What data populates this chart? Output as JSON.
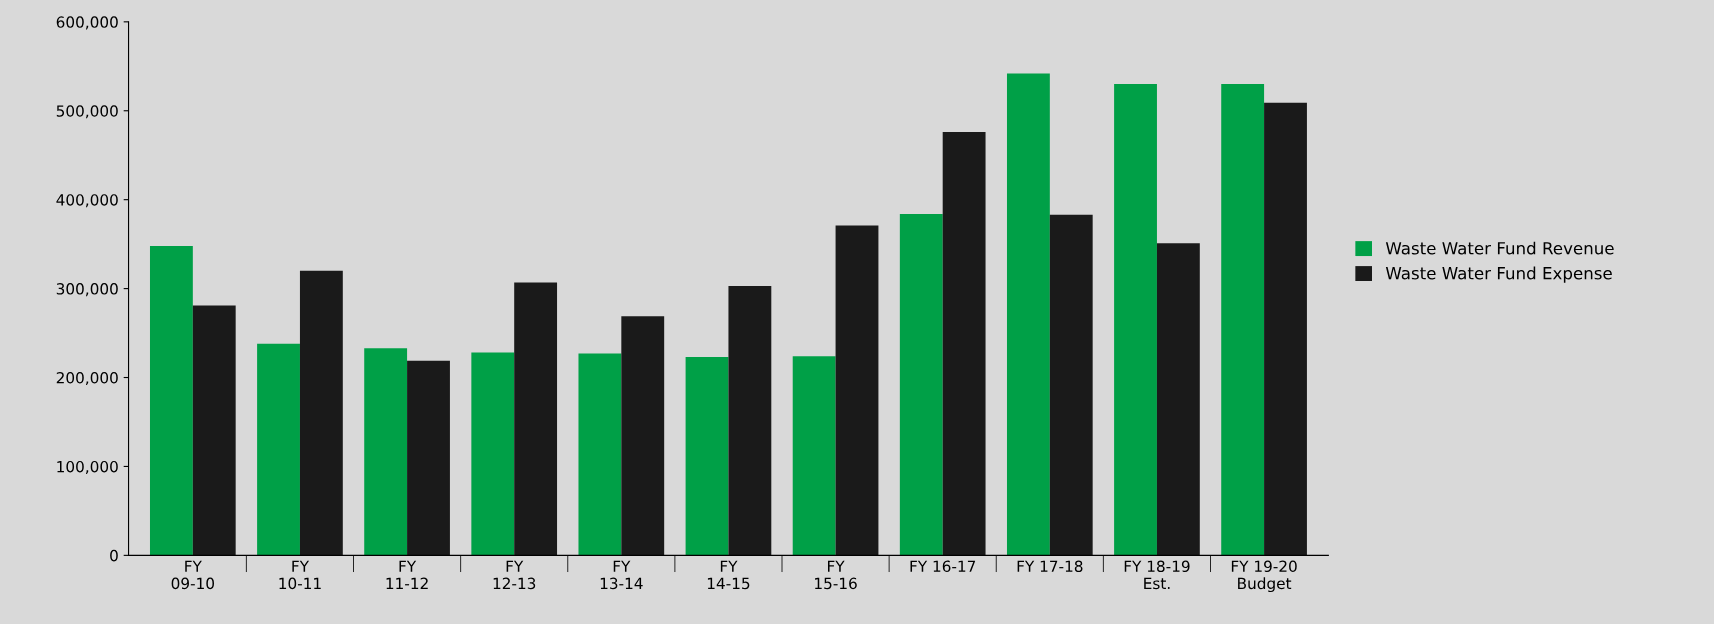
{
  "chart_data": {
    "type": "bar",
    "categories": [
      "FY\n09-10",
      "FY\n10-11",
      "FY\n11-12",
      "FY\n12-13",
      "FY\n13-14",
      "FY\n14-15",
      "FY\n15-16",
      "FY 16-17",
      "FY 17-18",
      "FY 18-19\nEst.",
      "FY 19-20\nBudget"
    ],
    "series": [
      {
        "name": "Waste Water Fund Revenue",
        "color": "#00a047",
        "values": [
          348000,
          238000,
          233000,
          228000,
          227000,
          223000,
          224000,
          384000,
          542000,
          530000,
          530000
        ]
      },
      {
        "name": "Waste Water Fund Expense",
        "color": "#1a1a1a",
        "values": [
          281000,
          320000,
          219000,
          307000,
          269000,
          303000,
          371000,
          476000,
          383000,
          351000,
          509000
        ]
      }
    ],
    "ylim": [
      0,
      600000
    ],
    "yticks": [
      {
        "value": 0,
        "label": "0"
      },
      {
        "value": 100000,
        "label": "100,000"
      },
      {
        "value": 200000,
        "label": "200,000"
      },
      {
        "value": 300000,
        "label": "300,000"
      },
      {
        "value": 400000,
        "label": "400,000"
      },
      {
        "value": 500000,
        "label": "500,000"
      },
      {
        "value": 600000,
        "label": "600,000"
      }
    ],
    "grid": false,
    "legend": "right"
  }
}
